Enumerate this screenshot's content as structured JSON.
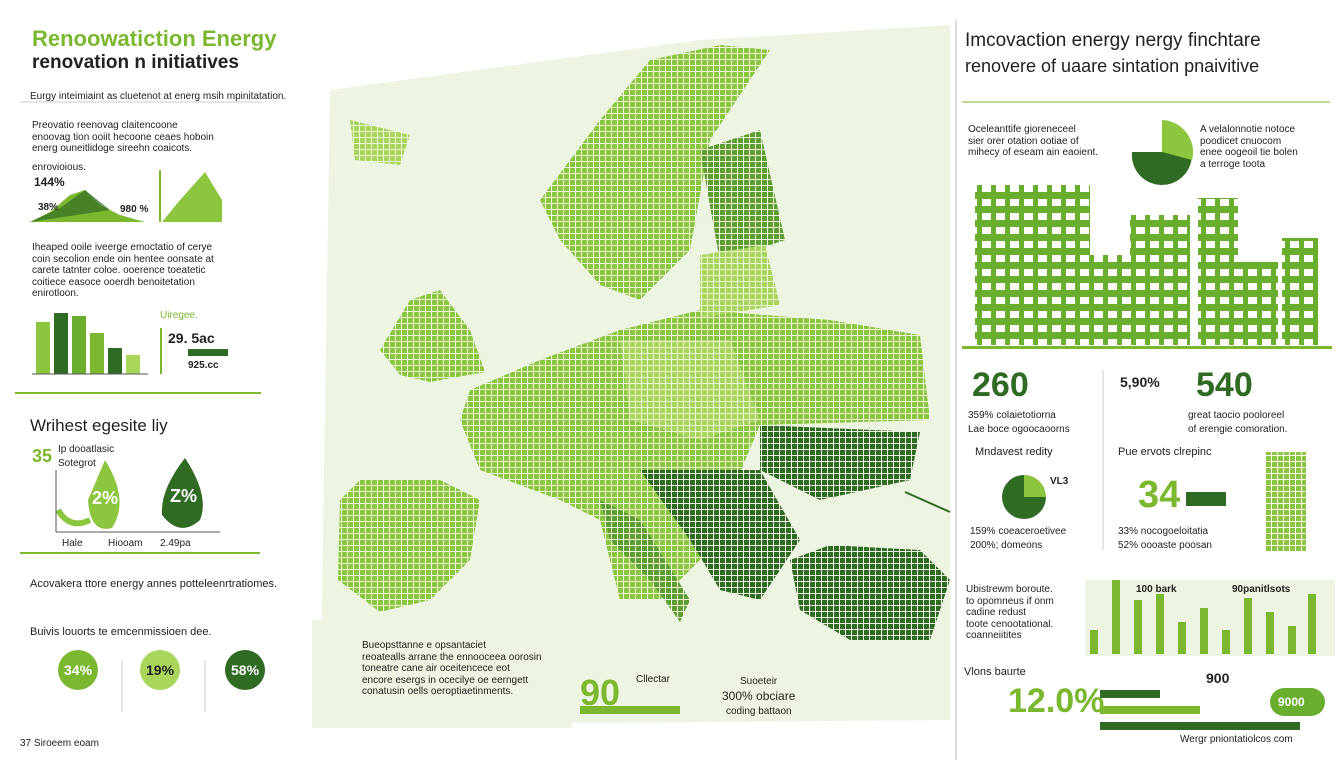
{
  "left": {
    "title": [
      "Renoowatiction Energy",
      "renovation n initiatives"
    ],
    "subtitle": "Eurgy inteimiaint as cluetenot at energ msih mpinitatation.",
    "intro": [
      "Preovatio reenovag claitencoone",
      "enoovag tion ooiit hecoone ceaes hoboin",
      "energ ouneitlidoge sireehn coaicots."
    ],
    "chart_label": "enrovioious.",
    "stats": [
      "144%",
      "38%",
      "980 %"
    ],
    "para": [
      "Iheaped ooile iveerge emoctatio of cerye",
      "coin secolion ende oin hentee oonsate at",
      "carete tatnter coloe. ooerence toeatetic",
      "coitiece easoce ooerdh benoitetation",
      "enirotloon."
    ],
    "side": [
      "Uiregee.",
      "29. 5ac",
      "925.cc"
    ],
    "section_title": "Wrihest egesite liy",
    "big": "35",
    "legend": [
      "Ip dooatlasic",
      "Sotegrot"
    ],
    "drops": [
      "2%",
      "Z%"
    ],
    "drop_labels": [
      "Hale",
      "Hiooam",
      "2.49pa"
    ],
    "heading2": "Acovakera ttore energy annes potteleenrtratiomes.",
    "heading3": "Buivis louorts te emcenmissioen dee.",
    "circles": [
      "34%",
      "19%",
      "58%"
    ],
    "footer": "37 Siroeem eoam"
  },
  "center": {
    "note": [
      "Bueopsttanne e opsantaciet",
      "reoatealls arrane the ennooceea oorosin",
      "toneatre cane air oceitencece eot",
      "encore esergs in ocecilye oe eerngett",
      "conatusin oells oeroptiaetinments."
    ],
    "big": "90",
    "big_label": "Cllectar",
    "stat_title": "Suoeteir",
    "stat": "300% obciare",
    "stat_sub": "coding battaon"
  },
  "right": {
    "title": [
      "Imcovaction energy nergy finchtare",
      "renovere of uaare sintation pnaivitive"
    ],
    "intro": [
      "Oceleanttife gioreneceel",
      "sier orer otation ootiae of",
      "mihecy of eseam ain eaoient."
    ],
    "pie_note": [
      "A velalonnotie notoce",
      "poodicet cnuocom",
      "enee oogeoil tie bolen",
      "a terroge toota"
    ],
    "k1": "260",
    "k1_text": [
      "359% colaietotiorna",
      "Lae boce ogoocaoorns"
    ],
    "k2_small": "5,90%",
    "k2": "540",
    "k2_text": [
      "great taocio pooloreel",
      "of erengie comoration."
    ],
    "h1": "Mndavest redity",
    "pie2": "VL3",
    "h2": "Pue ervots clrepinc",
    "k3": "34",
    "p1": [
      "159% coeaceroetivee",
      "200%; domeons"
    ],
    "p2": [
      "33% nocogoeloitatia",
      "52% oooaste poosan"
    ],
    "list": [
      "Ubistrewm boroute.",
      "to opomneus if onm",
      "cadine redust",
      "toote cenootational.",
      "coanneiitites"
    ],
    "bar_labels": [
      "100 bark",
      "90panitlsots"
    ],
    "h3": "Vlons baurte",
    "k4": "12.0%",
    "k5": "900",
    "k6": "9000",
    "footer": "Wergr pniontatiolcos com"
  }
}
